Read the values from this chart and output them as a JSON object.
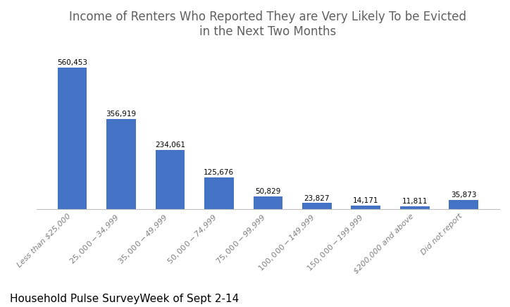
{
  "title": "Income of Renters Who Reported They are Very Likely To be Evicted\nin the Next Two Months",
  "categories": [
    "Less than $25,000",
    "$25,000 - $34,999",
    "$35,000 - $49,999",
    "$50,000 - $74,999",
    "$75,000 - $99,999",
    "$100,000 - $149,999",
    "$150,000 - $199,999",
    "$200,000 and above",
    "Did not report"
  ],
  "values": [
    560453,
    356919,
    234061,
    125676,
    50829,
    23827,
    14171,
    11811,
    35873
  ],
  "bar_color": "#4472C4",
  "value_labels": [
    "560,453",
    "356,919",
    "234,061",
    "125,676",
    "50,829",
    "23,827",
    "14,171",
    "11,811",
    "35,873"
  ],
  "subtitle": "Household Pulse SurveyWeek of Sept 2-14",
  "subtitle_fontsize": 11,
  "title_fontsize": 12,
  "background_color": "#ffffff",
  "ylim": [
    0,
    650000
  ]
}
